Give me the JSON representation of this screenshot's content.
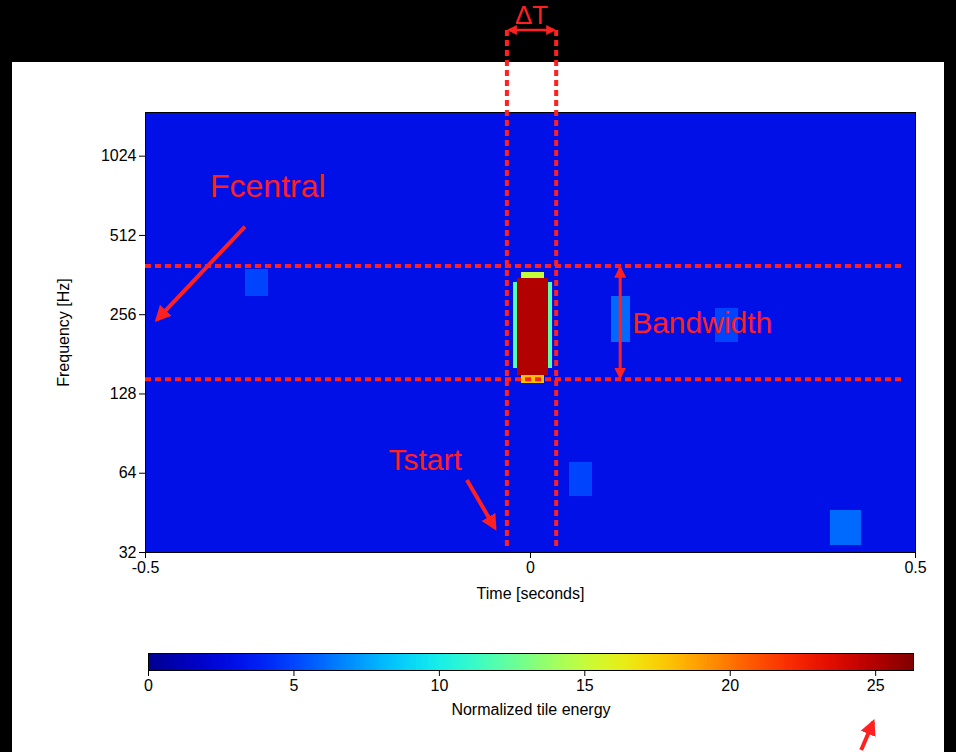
{
  "chart_data": {
    "type": "heatmap",
    "x_label": "Time [seconds]",
    "y_label": "Frequency [Hz]",
    "xlim": [
      -0.5,
      0.5
    ],
    "xticks": [
      -0.5,
      0,
      0.5
    ],
    "ylim": [
      32,
      1500
    ],
    "yticks": [
      32,
      64,
      128,
      256,
      512,
      1024
    ],
    "log": "y",
    "cells": [
      {
        "t": [
          -0.5,
          0.5
        ],
        "f": [
          32,
          1500
        ],
        "energy": 3
      },
      {
        "t": [
          0.39,
          0.43
        ],
        "f": [
          34,
          46
        ],
        "energy": 6
      },
      {
        "t": [
          0.24,
          0.27
        ],
        "f": [
          200,
          270
        ],
        "energy": 5
      },
      {
        "t": [
          0.05,
          0.08
        ],
        "f": [
          52,
          70
        ],
        "energy": 5
      },
      {
        "t": [
          -0.37,
          -0.34
        ],
        "f": [
          300,
          380
        ],
        "energy": 5
      },
      {
        "t": [
          0.105,
          0.13
        ],
        "f": [
          200,
          300
        ],
        "energy": 6
      },
      {
        "t": [
          -0.022,
          -0.017
        ],
        "f": [
          160,
          340
        ],
        "energy": 12
      },
      {
        "t": [
          0.023,
          0.028
        ],
        "f": [
          160,
          340
        ],
        "energy": 12
      },
      {
        "t": [
          -0.012,
          0.018
        ],
        "f": [
          140,
          150
        ],
        "energy": 18
      },
      {
        "t": [
          -0.012,
          0.018
        ],
        "f": [
          350,
          370
        ],
        "energy": 15
      },
      {
        "t": [
          -0.017,
          0.023
        ],
        "f": [
          150,
          350
        ],
        "energy": 25
      }
    ],
    "colorbar": {
      "label": "Normalized tile energy",
      "range": [
        0,
        26.3
      ],
      "ticks": [
        0,
        5,
        10,
        15,
        20,
        25
      ]
    },
    "annotations": [
      {
        "text": "ΔT",
        "t_range": [
          -0.03,
          0.034
        ]
      },
      {
        "text": "Bandwidth",
        "f_range": [
          145,
          390
        ]
      },
      {
        "text": "Fcentral",
        "f": 240
      },
      {
        "text": "Tstart",
        "t": -0.03
      }
    ]
  }
}
